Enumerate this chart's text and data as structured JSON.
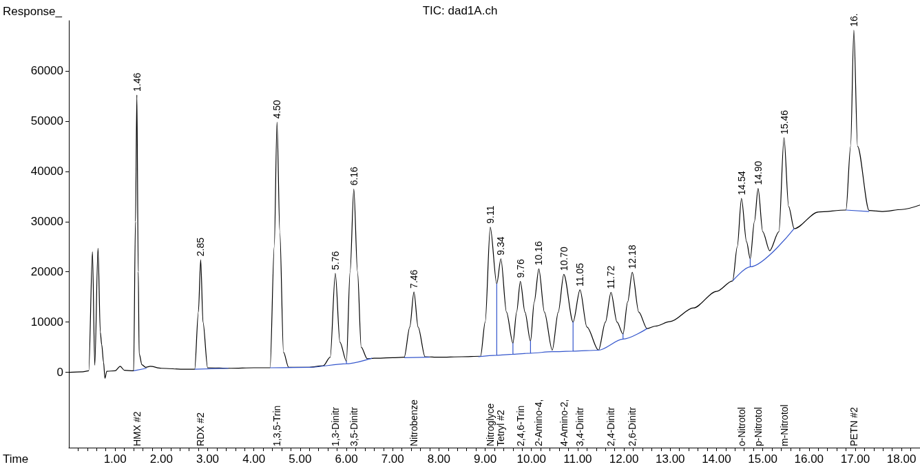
{
  "chart_data": {
    "type": "line",
    "title": "TIC: dad1A.ch",
    "xlabel": "Time",
    "ylabel": "Response_",
    "series": [
      {
        "color": "#000000",
        "x": [
          0,
          0.3,
          0.43,
          0.51,
          0.56,
          0.63,
          0.68,
          0.71,
          0.75,
          0.78,
          0.82,
          1.0,
          1.11,
          1.2,
          1.4,
          1.44,
          1.47,
          1.5,
          1.52,
          1.58,
          1.66,
          1.76,
          2.0,
          2.5,
          2.72,
          2.8,
          2.85,
          2.9,
          3.0,
          3.5,
          4.0,
          4.35,
          4.44,
          4.5,
          4.56,
          4.64,
          4.75,
          5.2,
          5.5,
          5.65,
          5.76,
          5.86,
          6.0,
          6.08,
          6.16,
          6.24,
          6.32,
          6.45,
          6.6,
          7.0,
          7.25,
          7.37,
          7.46,
          7.55,
          7.7,
          8.0,
          8.5,
          8.9,
          9.0,
          9.11,
          9.25,
          9.34,
          9.46,
          9.6,
          9.68,
          9.76,
          9.86,
          9.98,
          10.06,
          10.16,
          10.28,
          10.45,
          10.58,
          10.7,
          10.9,
          11.05,
          11.2,
          11.45,
          11.6,
          11.72,
          11.85,
          11.98,
          12.08,
          12.18,
          12.32,
          12.5,
          12.68,
          13.0,
          13.5,
          14.0,
          14.35,
          14.45,
          14.54,
          14.65,
          14.73,
          14.82,
          14.9,
          15.0,
          15.15,
          15.35,
          15.46,
          15.56,
          15.68,
          16.2,
          16.8,
          16.9,
          16.97,
          17.05,
          17.3,
          17.6,
          18.0,
          18.4
        ],
        "values": [
          0,
          100,
          300,
          24000,
          1400,
          24700,
          8000,
          5500,
          2000,
          -1200,
          200,
          300,
          1200,
          400,
          300,
          30000,
          55200,
          20000,
          3700,
          1500,
          1000,
          1200,
          800,
          600,
          600,
          12000,
          22400,
          10000,
          900,
          800,
          900,
          900,
          25000,
          49800,
          28000,
          4000,
          1000,
          1000,
          1300,
          3000,
          19700,
          6000,
          2200,
          20000,
          36500,
          20000,
          5000,
          2700,
          2800,
          2900,
          3000,
          9000,
          16000,
          9000,
          3100,
          3000,
          3100,
          3200,
          10000,
          28900,
          17600,
          22600,
          12000,
          5800,
          12000,
          18100,
          12000,
          6200,
          14000,
          20600,
          12000,
          4400,
          12000,
          19500,
          10000,
          16400,
          9000,
          4400,
          10000,
          15900,
          10000,
          7600,
          14000,
          19900,
          12000,
          8700,
          9200,
          10100,
          12800,
          16100,
          18200,
          25000,
          34600,
          26000,
          22600,
          30000,
          36600,
          28000,
          24200,
          28000,
          46700,
          33000,
          28600,
          31900,
          32300,
          45000,
          68100,
          45000,
          32200,
          32000,
          32400,
          33300
        ]
      },
      {
        "color": "#3355cc",
        "x": [
          1.4,
          1.68
        ],
        "values": [
          300,
          800
        ]
      },
      {
        "color": "#3355cc",
        "x": [
          2.72,
          3.45
        ],
        "values": [
          600,
          800
        ]
      },
      {
        "color": "#3355cc",
        "x": [
          4.35,
          5.2,
          6.0,
          6.0,
          6.0,
          6.55
        ],
        "values": [
          900,
          1000,
          1700,
          2200,
          1700,
          2800
        ]
      },
      {
        "color": "#3355cc",
        "x": [
          7.25,
          7.8
        ],
        "values": [
          2900,
          3000
        ]
      },
      {
        "color": "#3355cc",
        "x": [
          8.85,
          9.25,
          9.25,
          9.25,
          9.6,
          9.6,
          9.6,
          9.98,
          9.98,
          9.98,
          10.45,
          10.9,
          10.9,
          10.9,
          11.45,
          11.98,
          11.98,
          11.98,
          12.5
        ],
        "values": [
          3100,
          3400,
          17600,
          3400,
          3600,
          5800,
          3600,
          3800,
          6200,
          3800,
          4100,
          4200,
          10000,
          4200,
          4400,
          6600,
          7600,
          6600,
          8700
        ]
      },
      {
        "color": "#3355cc",
        "x": [
          14.35,
          14.73,
          14.73,
          14.73,
          15.68
        ],
        "values": [
          18200,
          21000,
          22600,
          21000,
          28600
        ]
      },
      {
        "color": "#3355cc",
        "x": [
          16.8,
          17.3
        ],
        "values": [
          32300,
          32000
        ]
      }
    ],
    "xlim": [
      0,
      18.4
    ],
    "ylim": [
      -15000,
      70000
    ],
    "xticks": [
      {
        "value": 0.2,
        "label": null
      },
      {
        "value": 0.4,
        "label": null
      },
      {
        "value": 0.6,
        "label": null
      },
      {
        "value": 0.8,
        "label": null
      },
      {
        "value": 1,
        "label": "1.00"
      },
      {
        "value": 1.2,
        "label": null
      },
      {
        "value": 1.4,
        "label": null
      },
      {
        "value": 1.6,
        "label": null
      },
      {
        "value": 1.8,
        "label": null
      },
      {
        "value": 2,
        "label": "2.00"
      },
      {
        "value": 2.2,
        "label": null
      },
      {
        "value": 2.4,
        "label": null
      },
      {
        "value": 2.6,
        "label": null
      },
      {
        "value": 2.8,
        "label": null
      },
      {
        "value": 3,
        "label": "3.00"
      },
      {
        "value": 3.2,
        "label": null
      },
      {
        "value": 3.4,
        "label": null
      },
      {
        "value": 3.6,
        "label": null
      },
      {
        "value": 3.8,
        "label": null
      },
      {
        "value": 4,
        "label": "4.00"
      },
      {
        "value": 4.2,
        "label": null
      },
      {
        "value": 4.4,
        "label": null
      },
      {
        "value": 4.6,
        "label": null
      },
      {
        "value": 4.8,
        "label": null
      },
      {
        "value": 5,
        "label": "5.00"
      },
      {
        "value": 5.2,
        "label": null
      },
      {
        "value": 5.4,
        "label": null
      },
      {
        "value": 5.6,
        "label": null
      },
      {
        "value": 5.8,
        "label": null
      },
      {
        "value": 6,
        "label": "6.00"
      },
      {
        "value": 6.2,
        "label": null
      },
      {
        "value": 6.4,
        "label": null
      },
      {
        "value": 6.6,
        "label": null
      },
      {
        "value": 6.8,
        "label": null
      },
      {
        "value": 7,
        "label": "7.00"
      },
      {
        "value": 7.2,
        "label": null
      },
      {
        "value": 7.4,
        "label": null
      },
      {
        "value": 7.6,
        "label": null
      },
      {
        "value": 7.8,
        "label": null
      },
      {
        "value": 8,
        "label": "8.00"
      },
      {
        "value": 8.2,
        "label": null
      },
      {
        "value": 8.4,
        "label": null
      },
      {
        "value": 8.6,
        "label": null
      },
      {
        "value": 8.8,
        "label": null
      },
      {
        "value": 9,
        "label": "9.00"
      },
      {
        "value": 9.2,
        "label": null
      },
      {
        "value": 9.4,
        "label": null
      },
      {
        "value": 9.6,
        "label": null
      },
      {
        "value": 9.8,
        "label": null
      },
      {
        "value": 10,
        "label": "10.00"
      },
      {
        "value": 10.2,
        "label": null
      },
      {
        "value": 10.4,
        "label": null
      },
      {
        "value": 10.6,
        "label": null
      },
      {
        "value": 10.8,
        "label": null
      },
      {
        "value": 11,
        "label": "11.00"
      },
      {
        "value": 11.2,
        "label": null
      },
      {
        "value": 11.4,
        "label": null
      },
      {
        "value": 11.6,
        "label": null
      },
      {
        "value": 11.8,
        "label": null
      },
      {
        "value": 12,
        "label": "12.00"
      },
      {
        "value": 12.2,
        "label": null
      },
      {
        "value": 12.4,
        "label": null
      },
      {
        "value": 12.6,
        "label": null
      },
      {
        "value": 12.8,
        "label": null
      },
      {
        "value": 13,
        "label": "13.00"
      },
      {
        "value": 13.2,
        "label": null
      },
      {
        "value": 13.4,
        "label": null
      },
      {
        "value": 13.6,
        "label": null
      },
      {
        "value": 13.8,
        "label": null
      },
      {
        "value": 14,
        "label": "14.00"
      },
      {
        "value": 14.2,
        "label": null
      },
      {
        "value": 14.4,
        "label": null
      },
      {
        "value": 14.6,
        "label": null
      },
      {
        "value": 14.8,
        "label": null
      },
      {
        "value": 15,
        "label": "15.00"
      },
      {
        "value": 15.2,
        "label": null
      },
      {
        "value": 15.4,
        "label": null
      },
      {
        "value": 15.6,
        "label": null
      },
      {
        "value": 15.8,
        "label": null
      },
      {
        "value": 16,
        "label": "16.00"
      },
      {
        "value": 16.2,
        "label": null
      },
      {
        "value": 16.4,
        "label": null
      },
      {
        "value": 16.6,
        "label": null
      },
      {
        "value": 16.8,
        "label": null
      },
      {
        "value": 17,
        "label": "17.00"
      },
      {
        "value": 17.2,
        "label": null
      },
      {
        "value": 17.4,
        "label": null
      },
      {
        "value": 17.6,
        "label": null
      },
      {
        "value": 17.8,
        "label": null
      },
      {
        "value": 18,
        "label": "18.00"
      },
      {
        "value": 18.2,
        "label": null
      }
    ],
    "yticks": [
      0,
      10000,
      20000,
      30000,
      40000,
      50000,
      60000
    ],
    "grid": false,
    "marker": "none",
    "line_style": "solid",
    "annotations": [
      {
        "text": "1.46",
        "x": 1.47,
        "y": 55200
      },
      {
        "text": "2.85",
        "x": 2.85,
        "y": 22400
      },
      {
        "text": "4.50",
        "x": 4.5,
        "y": 49800
      },
      {
        "text": "5.76",
        "x": 5.76,
        "y": 19700
      },
      {
        "text": "6.16",
        "x": 6.16,
        "y": 36500
      },
      {
        "text": "7.46",
        "x": 7.46,
        "y": 16000
      },
      {
        "text": "9.11",
        "x": 9.11,
        "y": 28900
      },
      {
        "text": "9.34",
        "x": 9.34,
        "y": 22600
      },
      {
        "text": "9.76",
        "x": 9.76,
        "y": 18100
      },
      {
        "text": "10.16",
        "x": 10.16,
        "y": 20600
      },
      {
        "text": "10.70",
        "x": 10.7,
        "y": 19500
      },
      {
        "text": "11.05",
        "x": 11.05,
        "y": 16400
      },
      {
        "text": "11.72",
        "x": 11.72,
        "y": 15900
      },
      {
        "text": "12.18",
        "x": 12.18,
        "y": 19900
      },
      {
        "text": "14.54",
        "x": 14.54,
        "y": 34600
      },
      {
        "text": "14.90",
        "x": 14.9,
        "y": 36600
      },
      {
        "text": "15.46",
        "x": 15.46,
        "y": 46700
      },
      {
        "text": "16.",
        "x": 16.97,
        "y": 68100
      },
      "HMX #2",
      "RDX #2",
      "1,3,5-Trin",
      "1,3-Dinitr",
      "3,5-Dinitr",
      "Nitrobenze",
      "Nitroglyce",
      "Tetryl #2",
      "2,4,6-Trin",
      "2-Amino-4,",
      "4-Amino-2,",
      "3,4-Dinitr",
      "2,4-Dinitr",
      "2,6-Dinitr",
      "o-Nitrotol",
      "p-Nitrotol",
      "m-Nitrotol",
      "PETN #2"
    ]
  }
}
